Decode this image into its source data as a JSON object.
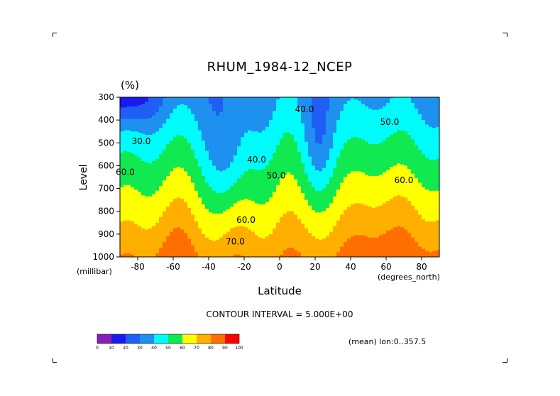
{
  "chart_data": {
    "type": "heatmap",
    "subtype": "filled-contour",
    "title": "RHUM_1984-12_NCEP",
    "units_label": "(%)",
    "xlabel": "Latitude",
    "xunits": "(degrees_north)",
    "ylabel": "Level",
    "yunits": "(millibar)",
    "xlim": [
      -90,
      90
    ],
    "ylim": [
      1000,
      300
    ],
    "x_ticks": [
      -80,
      -60,
      -40,
      -20,
      0,
      20,
      40,
      60,
      80
    ],
    "y_ticks": [
      300,
      400,
      500,
      600,
      700,
      800,
      900,
      1000
    ],
    "contour_interval_text": "CONTOUR INTERVAL = 5.000E+00",
    "footer_text": "(mean) lon:0..357.5",
    "contour_labels": [
      {
        "text": "40.0",
        "lat": 14,
        "lev": 355
      },
      {
        "text": "50.0",
        "lat": 62,
        "lev": 410
      },
      {
        "text": "30.0",
        "lat": -78,
        "lev": 495
      },
      {
        "text": "40.0",
        "lat": -13,
        "lev": 575
      },
      {
        "text": "50.0",
        "lat": -2,
        "lev": 645
      },
      {
        "text": "60.0",
        "lat": -87,
        "lev": 630
      },
      {
        "text": "60.0",
        "lat": 70,
        "lev": 665
      },
      {
        "text": "60.0",
        "lat": -19,
        "lev": 840
      },
      {
        "text": "70.0",
        "lat": -25,
        "lev": 935
      }
    ],
    "colorbar": {
      "ticks": [
        "0",
        "10",
        "20",
        "30",
        "40",
        "50",
        "60",
        "70",
        "80",
        "90",
        "100"
      ],
      "colors": [
        "#8a1eb8",
        "#1a1af0",
        "#1f5ff5",
        "#1e90ef",
        "#00fbfb",
        "#10ea50",
        "#ffff00",
        "#ffaf00",
        "#ff6e00",
        "#ff0000"
      ]
    },
    "grid": false,
    "legend": "colorbar-bottom-left"
  }
}
